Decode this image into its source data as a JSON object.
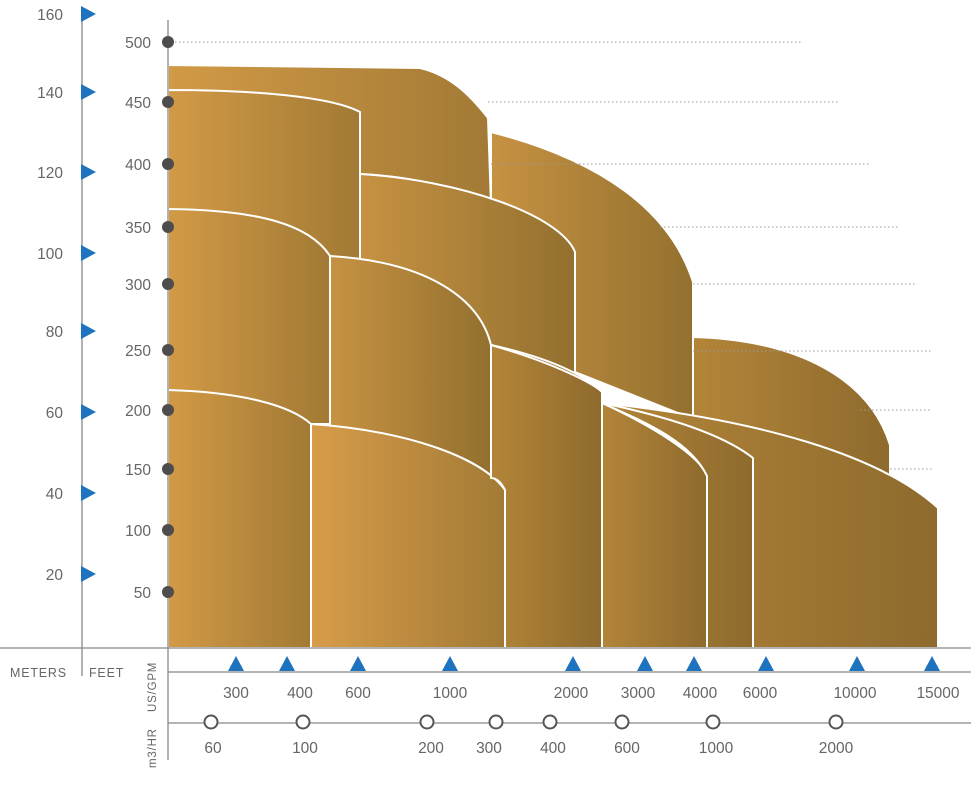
{
  "chart_data": {
    "type": "area",
    "description_axes": {
      "meters_label": "METERS",
      "feet_label": "FEET",
      "gpm_label": "US/GPM",
      "m3hr_label": "m3/HR"
    },
    "meters_ticks": [
      "20",
      "40",
      "60",
      "80",
      "100",
      "120",
      "140",
      "160"
    ],
    "feet_ticks": [
      "50",
      "100",
      "150",
      "200",
      "250",
      "300",
      "350",
      "400",
      "450",
      "500"
    ],
    "gpm_ticks": [
      "300",
      "400",
      "600",
      "1000",
      "2000",
      "3000",
      "4000",
      "6000",
      "10000",
      "15000"
    ],
    "m3hr_ticks": [
      "60",
      "100",
      "200",
      "300",
      "400",
      "600",
      "1000",
      "2000"
    ],
    "colors": {
      "gold_light": "#D49B48",
      "gold_dark": "#8E6A2D",
      "blue_marker": "#1E73BE",
      "dot": "#4D4D4D",
      "axis": "#888888"
    }
  }
}
